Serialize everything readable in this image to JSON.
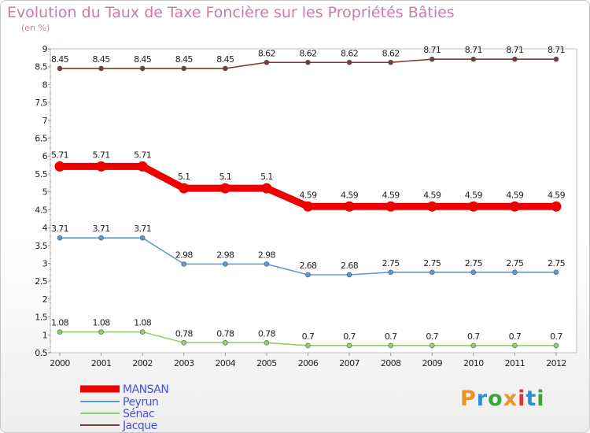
{
  "title": "Evolution du Taux de Taxe Foncière sur les Propriétés Bâties",
  "subtitle": "(en %)",
  "logo": {
    "text": "Proxiti",
    "letters": [
      "P",
      "r",
      "o",
      "x",
      "i",
      "t",
      "i"
    ],
    "colors": [
      "#e9952a",
      "#2e8fd6",
      "#3aa63a",
      "#e9952a",
      "#d63a3a",
      "#2e8fd6",
      "#3aa63a"
    ]
  },
  "chart_data": {
    "type": "line",
    "x": [
      "2000",
      "2001",
      "2002",
      "2003",
      "2004",
      "2005",
      "2006",
      "2007",
      "2008",
      "2009",
      "2010",
      "2011",
      "2012"
    ],
    "ylim": [
      0.5,
      9
    ],
    "yticks": [
      "0.5",
      "1",
      "1.5",
      "2",
      "2.5",
      "3",
      "3.5",
      "4",
      "4.5",
      "5",
      "5.5",
      "6",
      "6.5",
      "7",
      "7.5",
      "8",
      "8.5",
      "9"
    ],
    "series": [
      {
        "name": "MANSAN",
        "color": "#ee0000",
        "values": [
          5.71,
          5.71,
          5.71,
          5.1,
          5.1,
          5.1,
          4.59,
          4.59,
          4.59,
          4.59,
          4.59,
          4.59,
          4.59
        ],
        "labels": [
          "5.71",
          "5.71",
          "5.71",
          "5.1",
          "5.1",
          "5.1",
          "4.59",
          "4.59",
          "4.59",
          "4.59",
          "4.59",
          "4.59",
          "4.59"
        ]
      },
      {
        "name": "Peyrun",
        "color": "#5b9bd5",
        "values": [
          3.71,
          3.71,
          3.71,
          2.98,
          2.98,
          2.98,
          2.68,
          2.68,
          2.75,
          2.75,
          2.75,
          2.75,
          2.75
        ],
        "labels": [
          "3.71",
          "3.71",
          "3.71",
          "2.98",
          "2.98",
          "2.98",
          "2.68",
          "2.68",
          "2.75",
          "2.75",
          "2.75",
          "2.75",
          "2.75"
        ]
      },
      {
        "name": "Sénac",
        "color": "#8fd16a",
        "values": [
          1.08,
          1.08,
          1.08,
          0.78,
          0.78,
          0.78,
          0.7,
          0.7,
          0.7,
          0.7,
          0.7,
          0.7,
          0.7
        ],
        "labels": [
          "1.08",
          "1.08",
          "1.08",
          "0.78",
          "0.78",
          "0.78",
          "0.7",
          "0.7",
          "0.7",
          "0.7",
          "0.7",
          "0.7",
          "0.7"
        ]
      },
      {
        "name": "Jacque",
        "color": "#7a3a3a",
        "values": [
          8.45,
          8.45,
          8.45,
          8.45,
          8.45,
          8.62,
          8.62,
          8.62,
          8.62,
          8.71,
          8.71,
          8.71,
          8.71
        ],
        "labels": [
          "8.45",
          "8.45",
          "8.45",
          "8.45",
          "8.45",
          "8.62",
          "8.62",
          "8.62",
          "8.62",
          "8.71",
          "8.71",
          "8.71",
          "8.71"
        ]
      }
    ],
    "legend_position": "bottom-left"
  }
}
